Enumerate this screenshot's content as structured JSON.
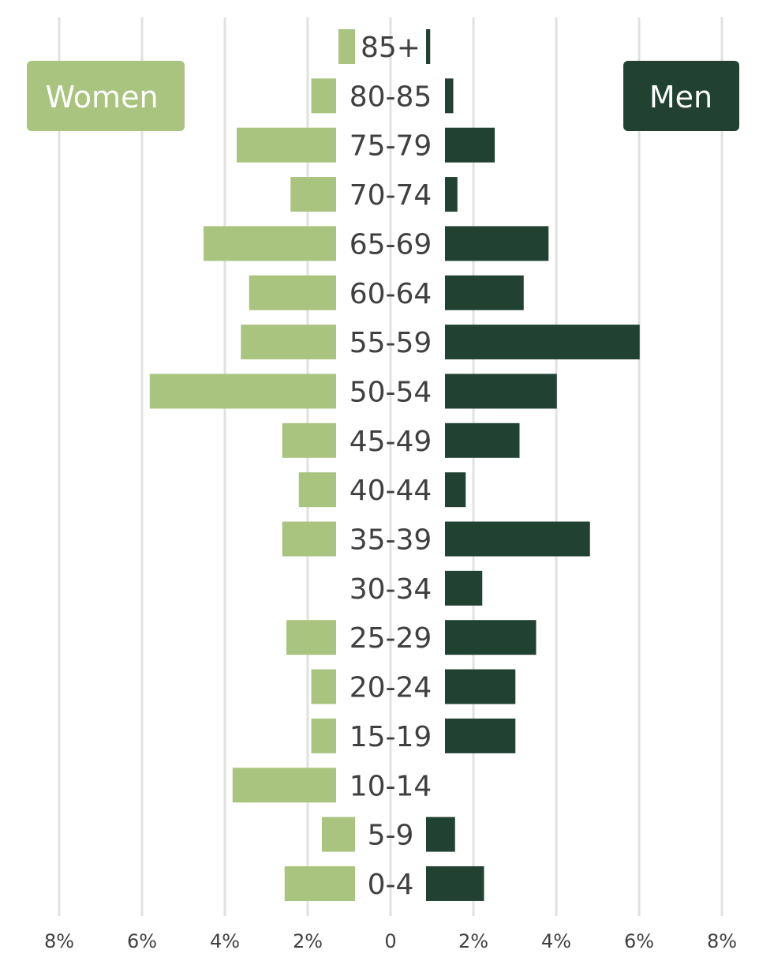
{
  "chart_data": {
    "type": "bar",
    "orientation": "horizontal",
    "layout": "population-pyramid",
    "categories": [
      "85+",
      "80-85",
      "75-79",
      "70-74",
      "65-69",
      "60-64",
      "55-59",
      "50-54",
      "45-49",
      "40-44",
      "35-39",
      "30-34",
      "25-29",
      "20-24",
      "15-19",
      "10-14",
      "5-9",
      "0-4"
    ],
    "series": [
      {
        "name": "Women",
        "color": "#a9c47f",
        "values": [
          0.4,
          0.6,
          2.4,
          1.1,
          3.2,
          2.1,
          2.3,
          4.5,
          1.3,
          0.9,
          1.3,
          0.0,
          1.2,
          0.6,
          0.6,
          2.5,
          0.8,
          1.7
        ]
      },
      {
        "name": "Men",
        "color": "#214233",
        "values": [
          0.1,
          0.2,
          1.2,
          0.3,
          2.5,
          1.9,
          4.7,
          2.7,
          1.8,
          0.5,
          3.5,
          0.9,
          2.2,
          1.7,
          1.7,
          0.0,
          0.7,
          1.4
        ]
      }
    ],
    "xlim": [
      -8,
      8
    ],
    "x_ticks": [
      "8%",
      "6%",
      "4%",
      "2%",
      "0",
      "2%",
      "4%",
      "6%",
      "8%"
    ],
    "grid": "vertical",
    "legend": {
      "left": "Women",
      "right": "Men",
      "placement": "top"
    },
    "title": "",
    "xlabel": "",
    "ylabel": ""
  }
}
